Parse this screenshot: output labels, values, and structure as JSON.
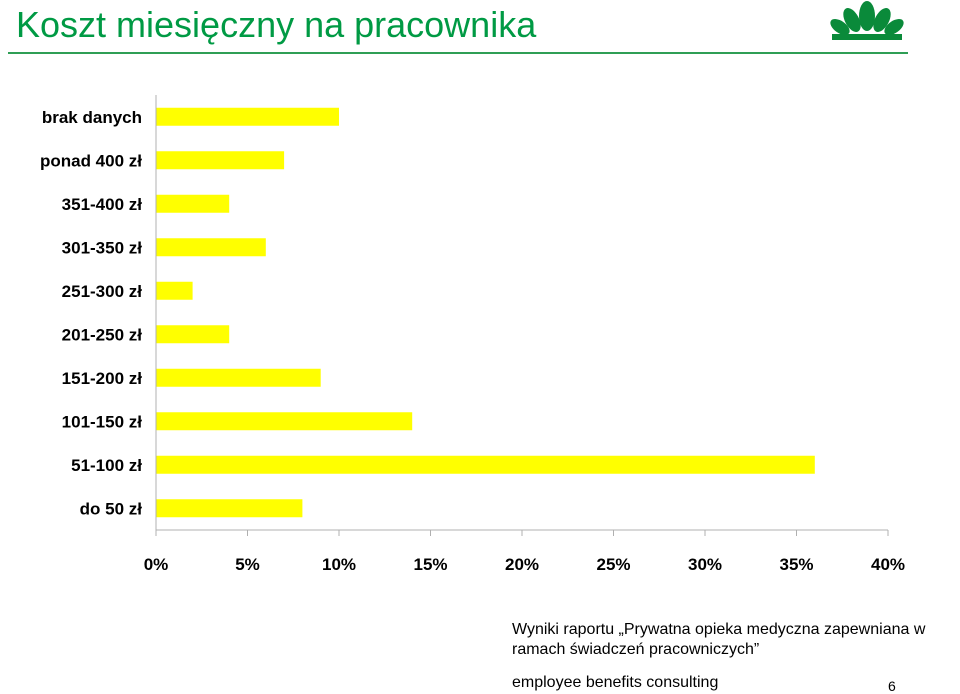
{
  "slide": {
    "title": "Koszt miesięczny na pracownika",
    "caption_line1": "Wyniki raportu „Prywatna opieka medyczna zapewniana w",
    "caption_line2": "ramach świadczeń pracowniczych”",
    "footer": "employee benefits consulting",
    "page_number": "6"
  },
  "colors": {
    "title": "#009a44",
    "bar": "#ffff00",
    "logo": "#0a8a3a"
  },
  "chart_data": {
    "type": "bar",
    "orientation": "horizontal",
    "title": "",
    "categories": [
      "brak danych",
      "ponad 400 zł",
      "351-400 zł",
      "301-350 zł",
      "251-300 zł",
      "201-250 zł",
      "151-200 zł",
      "101-150 zł",
      "51-100 zł",
      "do 50 zł"
    ],
    "values": [
      10,
      7,
      4,
      6,
      2,
      4,
      9,
      14,
      36,
      8
    ],
    "value_unit": "%",
    "xlim": [
      0,
      40
    ],
    "xticks": [
      0,
      5,
      10,
      15,
      20,
      25,
      30,
      35,
      40
    ],
    "xtick_labels": [
      "0%",
      "5%",
      "10%",
      "15%",
      "20%",
      "25%",
      "30%",
      "35%",
      "40%"
    ],
    "xlabel": "",
    "ylabel": "",
    "grid": false
  }
}
